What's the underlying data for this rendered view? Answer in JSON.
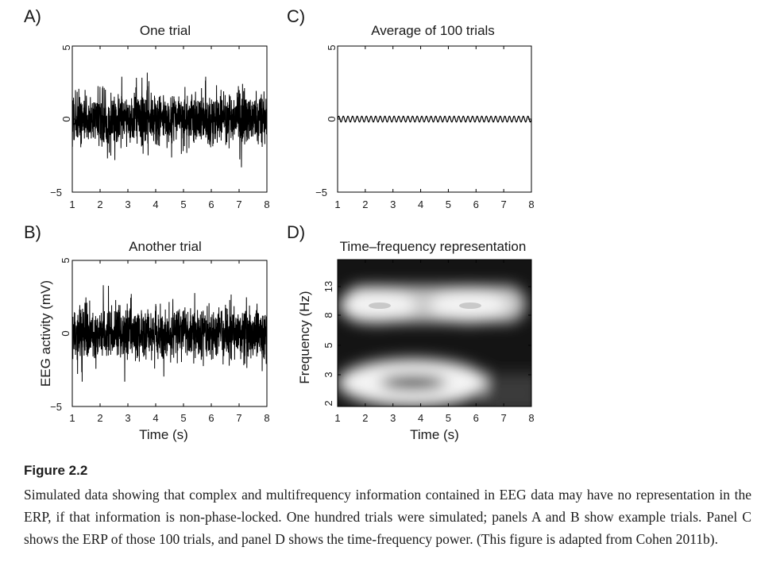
{
  "figure": {
    "panels": [
      {
        "letter": "A)",
        "title": "One trial",
        "yticks": [
          "5",
          "0",
          "−5"
        ],
        "xticks": [
          "1",
          "2",
          "3",
          "4",
          "5",
          "6",
          "7",
          "8"
        ]
      },
      {
        "letter": "B)",
        "title": "Another trial",
        "yticks": [
          "5",
          "0",
          "−5"
        ],
        "xticks": [
          "1",
          "2",
          "3",
          "4",
          "5",
          "6",
          "7",
          "8"
        ],
        "xlabel": "Time (s)",
        "ylabel": "EEG activity (mV)"
      },
      {
        "letter": "C)",
        "title": "Average of 100 trials",
        "yticks": [
          "5",
          "0",
          "−5"
        ],
        "xticks": [
          "1",
          "2",
          "3",
          "4",
          "5",
          "6",
          "7",
          "8"
        ]
      },
      {
        "letter": "D)",
        "title": "Time–frequency representation",
        "yticks": [
          "13",
          "8",
          "5",
          "3",
          "2"
        ],
        "xticks": [
          "1",
          "2",
          "3",
          "4",
          "5",
          "6",
          "7",
          "8"
        ],
        "xlabel": "Time (s)",
        "ylabel": "Frequency (Hz)"
      }
    ]
  },
  "chart_data": [
    {
      "panel": "A)",
      "type": "line",
      "title": "One trial",
      "xlabel": "",
      "ylabel": "",
      "xlim": [
        1,
        8
      ],
      "ylim": [
        -5,
        5
      ],
      "series": [
        {
          "description_values": "random noise, amplitude about ±2.5"
        }
      ]
    },
    {
      "panel": "B)",
      "type": "line",
      "title": "Another trial",
      "xlabel": "Time (s)",
      "ylabel": "EEG activity (mV)",
      "xlim": [
        1,
        8
      ],
      "ylim": [
        -5,
        5
      ],
      "series": [
        {
          "description_values": "random noise, amplitude about ±2.5"
        }
      ]
    },
    {
      "panel": "C)",
      "type": "line",
      "title": "Average of 100 trials",
      "xlabel": "",
      "ylabel": "",
      "xlim": [
        1,
        8
      ],
      "ylim": [
        -5,
        5
      ],
      "series": [
        {
          "amplitude": 0.2,
          "cycles": 42
        }
      ]
    },
    {
      "panel": "D)",
      "type": "heatmap",
      "title": "Time–frequency representation",
      "xlabel": "Time (s)",
      "ylabel": "Frequency (Hz)",
      "xlim": [
        1,
        8
      ],
      "ytick_labels": [
        "2",
        "3",
        "5",
        "8",
        "13"
      ],
      "blobs": [
        {
          "time_center": 2.3,
          "freq_hz": 9,
          "power": "high"
        },
        {
          "time_center": 5.7,
          "freq_hz": 9,
          "power": "high"
        },
        {
          "time_center": 3.5,
          "freq_hz": 3,
          "power": "high"
        }
      ]
    }
  ],
  "caption": {
    "label": "Figure 2.2",
    "text": "Simulated data showing that complex and multifrequency information contained in EEG data may have no representation in the ERP, if that information is non-phase-locked. One hundred trials were simulated; panels A and B show example trials. Panel C shows the ERP of those 100 trials, and panel D shows the time-frequency power. (This figure is adapted from Cohen 2011b)."
  }
}
